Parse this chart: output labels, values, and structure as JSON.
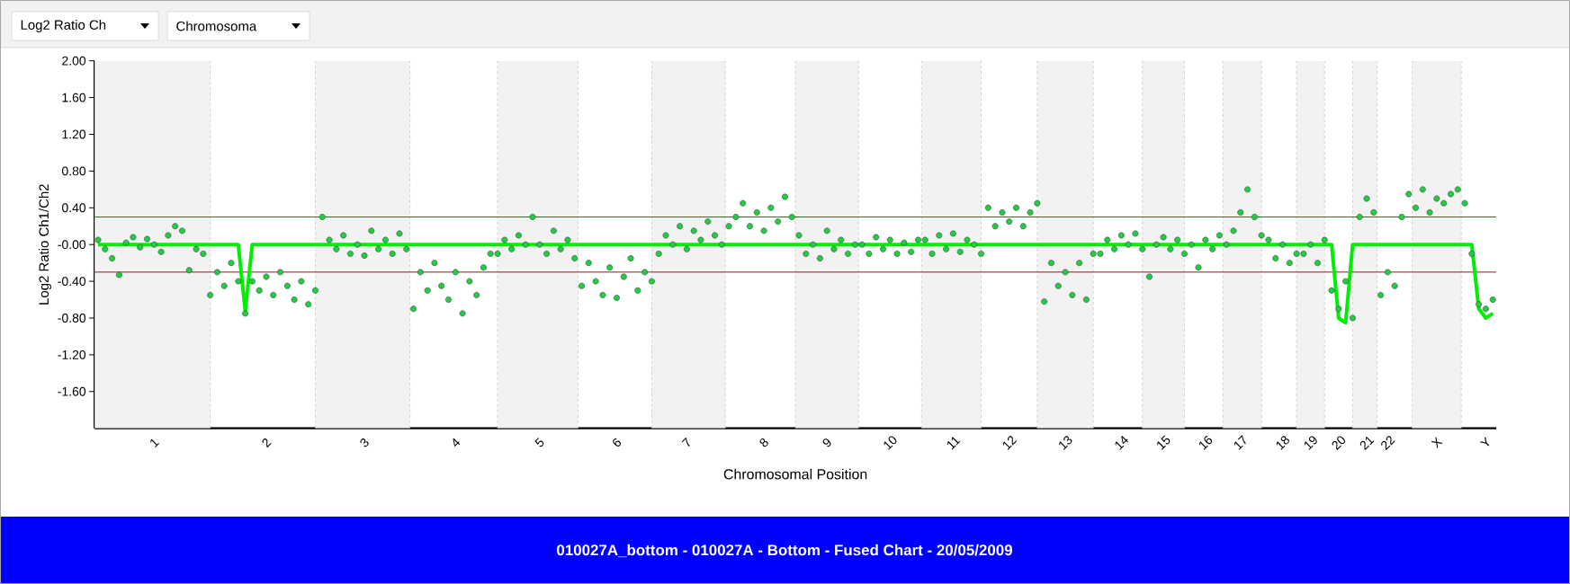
{
  "chart_data": {
    "type": "scatter",
    "title": "010027A_bottom - 010027A - Bottom - Fused Chart - 20/05/2009",
    "xlabel": "Chromosomal Position",
    "ylabel": "Log2 Ratio Ch1/Ch2",
    "annotations": [
      "Log2 Ratio Ch",
      "Chromosoma"
    ],
    "ylim": [
      -2,
      2
    ],
    "yticks": [
      {
        "value": 2,
        "label": "2.00"
      },
      {
        "value": 1.6,
        "label": "1.60"
      },
      {
        "value": 1.2,
        "label": "1.20"
      },
      {
        "value": 0.8,
        "label": "0.80"
      },
      {
        "value": 0.4,
        "label": "0.40"
      },
      {
        "value": 0,
        "label": "-0.00"
      },
      {
        "value": -0.4,
        "label": "-0.40"
      },
      {
        "value": -0.8,
        "label": "-0.80"
      },
      {
        "value": -1.2,
        "label": "-1.20"
      },
      {
        "value": -1.6,
        "label": "-1.60"
      }
    ],
    "categories": [
      null,
      null,
      null,
      null,
      null,
      null,
      null,
      null,
      "1",
      null,
      null,
      null,
      null,
      null,
      null,
      null,
      null,
      null,
      null,
      null,
      null,
      null,
      null,
      null,
      "2",
      null,
      null,
      null,
      null,
      null,
      null,
      null,
      null,
      null,
      null,
      null,
      null,
      null,
      "3",
      null,
      null,
      null,
      null,
      null,
      null,
      null,
      null,
      null,
      null,
      null,
      null,
      "4",
      null,
      null,
      null,
      null,
      null,
      null,
      null,
      null,
      null,
      null,
      null,
      "5",
      null,
      null,
      null,
      null,
      null,
      null,
      null,
      null,
      null,
      null,
      "6",
      null,
      null,
      null,
      null,
      null,
      null,
      null,
      null,
      null,
      "7",
      null,
      null,
      null,
      null,
      null,
      null,
      null,
      null,
      null,
      null,
      "8",
      null,
      null,
      null,
      null,
      null,
      null,
      null,
      null,
      "9",
      null,
      null,
      null,
      null,
      null,
      null,
      null,
      null,
      "10",
      null,
      null,
      null,
      null,
      null,
      null,
      null,
      null,
      "11",
      null,
      null,
      null,
      null,
      null,
      null,
      null,
      "12",
      null,
      null,
      null,
      null,
      null,
      null,
      null,
      "13",
      null,
      null,
      null,
      null,
      null,
      null,
      null,
      "14",
      null,
      null,
      null,
      null,
      null,
      "15",
      null,
      null,
      null,
      null,
      null,
      "16",
      null,
      null,
      null,
      null,
      "17",
      null,
      null,
      null,
      null,
      null,
      "18",
      null,
      null,
      null,
      "19",
      null,
      null,
      null,
      "20",
      null,
      null,
      null,
      "21",
      null,
      null,
      "22",
      null,
      null,
      null,
      null,
      null,
      null,
      "X",
      null,
      null,
      null,
      null,
      null,
      null,
      "Y",
      null
    ],
    "ref_lines": [
      {
        "axis": "y",
        "value": 0.3,
        "color": "#1a7a1a"
      },
      {
        "axis": "y",
        "value": -0.3,
        "color": "#8b1a1a"
      }
    ],
    "series": [
      {
        "color": "#22cc44",
        "marker": "circle",
        "values": [
          0.05,
          -0.05,
          -0.15,
          -0.33,
          0.02,
          0.08,
          -0.03,
          0.06,
          0.0,
          -0.08,
          0.1,
          0.2,
          0.15,
          -0.28,
          -0.05,
          -0.1,
          -0.55,
          -0.3,
          -0.45,
          -0.2,
          -0.4,
          -0.75,
          -0.4,
          -0.5,
          -0.35,
          -0.55,
          -0.3,
          -0.45,
          -0.6,
          -0.4,
          -0.65,
          -0.5,
          0.3,
          0.05,
          -0.05,
          0.1,
          -0.1,
          0.0,
          -0.12,
          0.15,
          -0.05,
          0.05,
          -0.1,
          0.12,
          -0.05,
          -0.7,
          -0.3,
          -0.5,
          -0.2,
          -0.45,
          -0.6,
          -0.3,
          -0.75,
          -0.4,
          -0.55,
          -0.25,
          -0.1,
          -0.1,
          0.05,
          -0.05,
          0.1,
          0.0,
          0.3,
          0.0,
          -0.1,
          0.15,
          -0.05,
          0.05,
          -0.15,
          -0.45,
          -0.2,
          -0.4,
          -0.55,
          -0.25,
          -0.58,
          -0.35,
          -0.15,
          -0.5,
          -0.3,
          -0.4,
          -0.1,
          0.1,
          0.0,
          0.2,
          -0.05,
          0.15,
          0.05,
          0.25,
          0.1,
          0.0,
          0.2,
          0.3,
          0.45,
          0.2,
          0.35,
          0.15,
          0.4,
          0.25,
          0.52,
          0.3,
          0.1,
          -0.1,
          0.0,
          -0.15,
          0.15,
          -0.05,
          0.05,
          -0.1,
          0.0,
          0.0,
          -0.1,
          0.08,
          -0.05,
          0.05,
          -0.1,
          0.02,
          -0.08,
          0.05,
          0.05,
          -0.1,
          0.1,
          -0.05,
          0.12,
          -0.08,
          0.05,
          0.0,
          -0.1,
          0.4,
          0.2,
          0.35,
          0.25,
          0.4,
          0.2,
          0.35,
          0.45,
          -0.62,
          -0.2,
          -0.45,
          -0.3,
          -0.55,
          -0.2,
          -0.6,
          -0.1,
          -0.1,
          0.05,
          -0.05,
          0.1,
          0.0,
          0.12,
          -0.05,
          -0.35,
          0.0,
          0.08,
          -0.05,
          0.05,
          -0.1,
          0.0,
          -0.25,
          0.05,
          -0.05,
          0.1,
          0.0,
          0.15,
          0.35,
          0.6,
          0.3,
          0.1,
          0.05,
          -0.15,
          0.0,
          -0.2,
          -0.1,
          -0.1,
          0.0,
          -0.2,
          0.05,
          -0.5,
          -0.7,
          -0.4,
          -0.8,
          0.3,
          0.5,
          0.35,
          -0.55,
          -0.3,
          -0.45,
          0.3,
          0.55,
          0.4,
          0.6,
          0.35,
          0.5,
          0.45,
          0.55,
          0.6,
          0.45,
          -0.1,
          -0.65,
          -0.7,
          -0.6
        ]
      },
      {
        "type": "line",
        "color": "#00ee00",
        "values": [
          0,
          0,
          0,
          0,
          0,
          0,
          0,
          0,
          0,
          0,
          0,
          0,
          0,
          0,
          0,
          0,
          0,
          0,
          0,
          0,
          0,
          -0.72,
          0,
          0,
          0,
          0,
          0,
          0,
          0,
          0,
          0,
          0,
          0,
          0,
          0,
          0,
          0,
          0,
          0,
          0,
          0,
          0,
          0,
          0,
          0,
          0,
          0,
          0,
          0,
          0,
          0,
          0,
          0,
          0,
          0,
          0,
          0,
          0,
          0,
          0,
          0,
          0,
          0,
          0,
          0,
          0,
          0,
          0,
          0,
          0,
          0,
          0,
          0,
          0,
          0,
          0,
          0,
          0,
          0,
          0,
          0,
          0,
          0,
          0,
          0,
          0,
          0,
          0,
          0,
          0,
          0,
          0,
          0,
          0,
          0,
          0,
          0,
          0,
          0,
          0,
          0,
          0,
          0,
          0,
          0,
          0,
          0,
          0,
          0,
          0,
          0,
          0,
          0,
          0,
          0,
          0,
          0,
          0,
          0,
          0,
          0,
          0,
          0,
          0,
          0,
          0,
          0,
          0,
          0,
          0,
          0,
          0,
          0,
          0,
          0,
          0,
          0,
          0,
          0,
          0,
          0,
          0,
          0,
          0,
          0,
          0,
          0,
          0,
          0,
          0,
          0,
          0,
          0,
          0,
          0,
          0,
          0,
          0,
          0,
          0,
          0,
          0,
          0,
          0,
          0,
          0,
          0,
          0,
          0,
          0,
          0,
          0,
          0,
          0,
          0,
          0,
          0,
          -0.8,
          -0.85,
          0,
          0,
          0,
          0,
          0,
          0,
          0,
          0,
          0,
          0,
          0,
          0,
          0,
          0,
          0,
          0,
          0,
          0,
          -0.7,
          -0.8,
          -0.75
        ]
      }
    ]
  }
}
